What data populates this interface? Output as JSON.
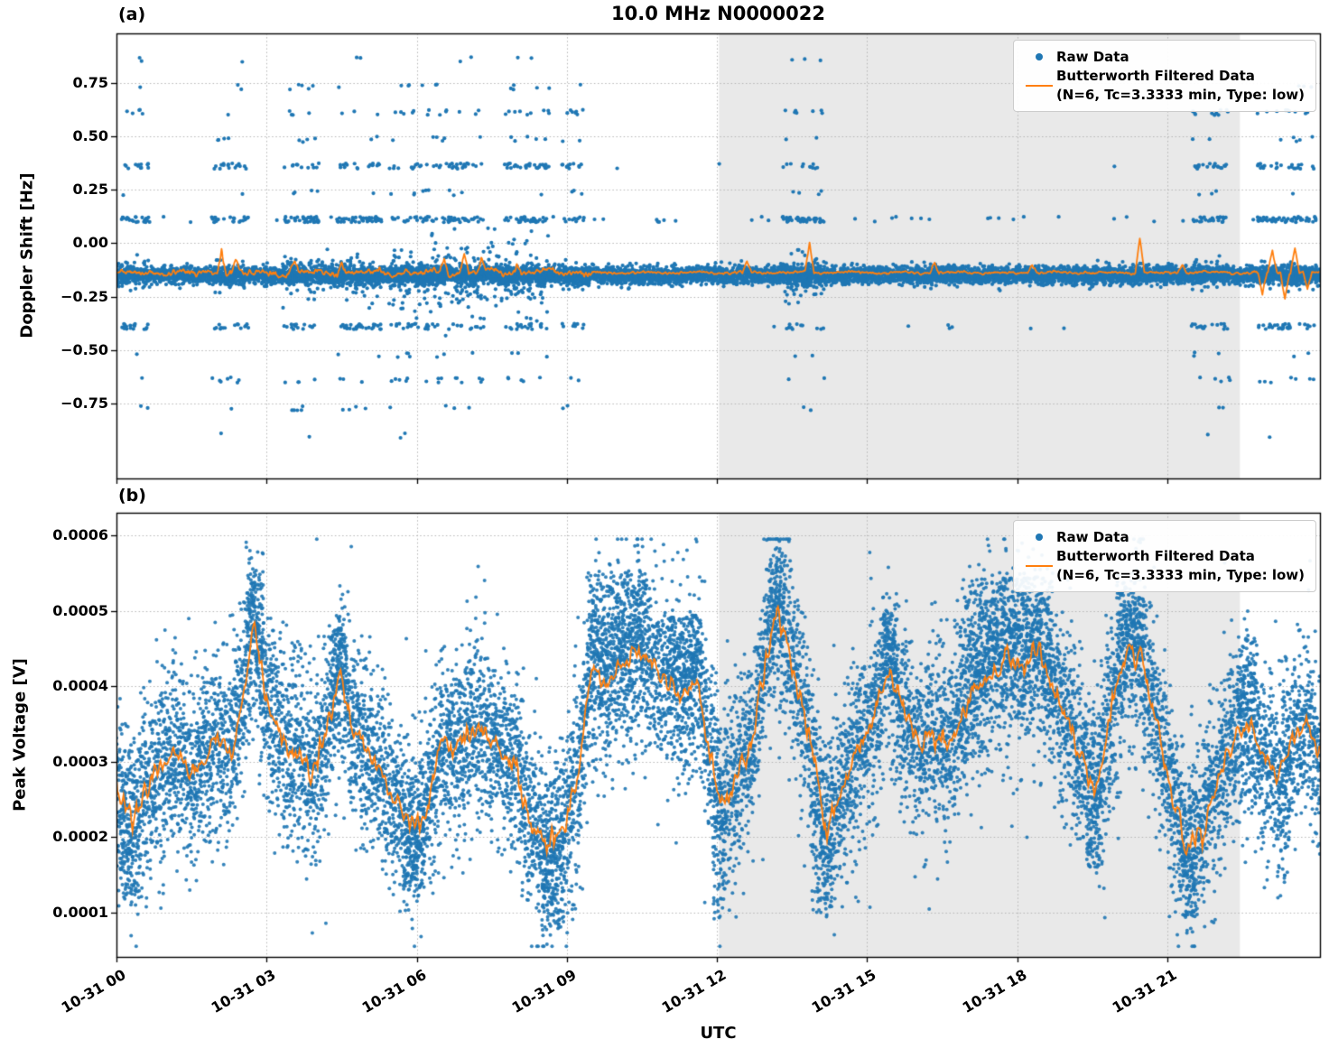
{
  "figure": {
    "colors": {
      "raw": "#1f77b4",
      "filtered": "#ff7f0e",
      "shade": "#e9e9e9",
      "grid": "#b5b5b5",
      "spine": "#000000"
    }
  },
  "legend": {
    "raw_label": "Raw Data",
    "filtered_label": "Butterworth Filtered Data",
    "filtered_sublabel": "(N=6, Tc=3.3333 min, Type: low)"
  },
  "chart_data": [
    {
      "id": "doppler_shift",
      "type": "scatter+line",
      "panel_label": "(a)",
      "title": "10.0 MHz N0000022",
      "ylabel": "Doppler Shift [Hz]",
      "ylim": [
        -1.1,
        0.98
      ],
      "yticks": [
        -0.75,
        -0.5,
        -0.25,
        0.0,
        0.25,
        0.5,
        0.75
      ],
      "ytick_labels": [
        "−0.75",
        "−0.50",
        "−0.25",
        "0.00",
        "0.25",
        "0.50",
        "0.75"
      ],
      "xlim_hours": [
        0,
        24.05
      ],
      "xticks_hours": [
        0,
        3,
        6,
        9,
        12,
        15,
        18,
        21
      ],
      "xtick_labels": [
        "10-31 00",
        "10-31 03",
        "10-31 06",
        "10-31 09",
        "10-31 12",
        "10-31 15",
        "10-31 18",
        "10-31 21"
      ],
      "shaded_region_hours": [
        12.04,
        22.45
      ],
      "grid": "dotted",
      "legend_position": "upper right",
      "series": [
        {
          "name": "Raw Data",
          "style": "scatter",
          "color": "#1f77b4",
          "baseline_hz": -0.15,
          "baseline_spread_hz": 0.02,
          "quantized_levels_hz": [
            0.86,
            0.73,
            0.61,
            0.485,
            0.36,
            0.235,
            0.11,
            -0.39,
            -0.52,
            -0.64,
            -0.77,
            -0.9
          ],
          "active_windows_hours": [
            [
              0.1,
              0.65
            ],
            [
              1.9,
              2.65
            ],
            [
              3.35,
              4.05
            ],
            [
              4.4,
              5.3
            ],
            [
              5.45,
              6.25
            ],
            [
              6.3,
              7.35
            ],
            [
              7.75,
              8.65
            ],
            [
              8.9,
              9.35
            ],
            [
              13.3,
              14.15
            ],
            [
              21.5,
              22.25
            ],
            [
              22.8,
              24.0
            ]
          ],
          "cloud_windows_hours": [
            [
              3.3,
              5.3,
              0.06,
              0.15
            ],
            [
              5.45,
              8.65,
              0.09,
              0.3
            ],
            [
              13.3,
              14.15,
              0.08,
              0.2
            ]
          ]
        },
        {
          "name": "Butterworth Filtered Data",
          "style": "line",
          "color": "#ff7f0e",
          "baseline_hz": -0.138,
          "spikes": [
            {
              "t": 2.1,
              "a": 0.115
            },
            {
              "t": 2.38,
              "a": 0.05
            },
            {
              "t": 3.55,
              "a": 0.06
            },
            {
              "t": 4.5,
              "a": 0.05
            },
            {
              "t": 6.55,
              "a": 0.07
            },
            {
              "t": 6.95,
              "a": 0.1
            },
            {
              "t": 7.3,
              "a": 0.06
            },
            {
              "t": 8.0,
              "a": 0.05
            },
            {
              "t": 12.6,
              "a": 0.05
            },
            {
              "t": 13.85,
              "a": 0.135
            },
            {
              "t": 16.35,
              "a": 0.05
            },
            {
              "t": 18.3,
              "a": 0.04
            },
            {
              "t": 20.45,
              "a": 0.165
            },
            {
              "t": 21.3,
              "a": 0.04
            },
            {
              "t": 22.9,
              "a": -0.1
            },
            {
              "t": 23.1,
              "a": 0.1
            },
            {
              "t": 23.35,
              "a": -0.12
            },
            {
              "t": 23.55,
              "a": 0.12
            },
            {
              "t": 23.8,
              "a": -0.08
            }
          ]
        }
      ]
    },
    {
      "id": "peak_voltage",
      "type": "scatter+line",
      "panel_label": "(b)",
      "ylabel": "Peak Voltage [V]",
      "xlabel": "UTC",
      "ylim": [
        4.1e-05,
        0.00063
      ],
      "yticks": [
        0.0001,
        0.0002,
        0.0003,
        0.0004,
        0.0005,
        0.0006
      ],
      "ytick_labels": [
        "0.0001",
        "0.0002",
        "0.0003",
        "0.0004",
        "0.0005",
        "0.0006"
      ],
      "xlim_hours": [
        0,
        24.05
      ],
      "xticks_hours": [
        0,
        3,
        6,
        9,
        12,
        15,
        18,
        21
      ],
      "xtick_labels": [
        "10-31 00",
        "10-31 03",
        "10-31 06",
        "10-31 09",
        "10-31 12",
        "10-31 15",
        "10-31 18",
        "10-31 21"
      ],
      "shaded_region_hours": [
        12.04,
        22.45
      ],
      "grid": "dotted",
      "legend_position": "upper right",
      "series": [
        {
          "name": "Raw Data",
          "style": "scatter",
          "color": "#1f77b4",
          "band_spread_v": 4.8e-05,
          "envelope_t_hours": [
            0,
            0.3,
            0.8,
            1.2,
            1.5,
            2.0,
            2.3,
            2.75,
            3.0,
            3.3,
            3.6,
            3.9,
            4.2,
            4.45,
            4.7,
            5.0,
            5.3,
            5.6,
            5.9,
            6.2,
            6.5,
            6.8,
            7.1,
            7.4,
            7.7,
            8.0,
            8.3,
            8.6,
            8.9,
            9.2,
            9.5,
            9.8,
            10.1,
            10.4,
            10.7,
            11.0,
            11.3,
            11.6,
            11.9,
            12.1,
            12.4,
            12.7,
            13.0,
            13.2,
            13.5,
            13.8,
            14.0,
            14.2,
            14.5,
            14.8,
            15.1,
            15.4,
            15.7,
            16.0,
            16.3,
            16.6,
            16.9,
            17.2,
            17.5,
            17.8,
            18.1,
            18.4,
            18.7,
            19.0,
            19.3,
            19.6,
            19.9,
            20.2,
            20.5,
            20.8,
            21.1,
            21.4,
            21.7,
            22.0,
            22.3,
            22.6,
            22.9,
            23.2,
            23.5,
            23.8,
            24.05
          ],
          "envelope_v": [
            0.00027,
            0.00022,
            0.00029,
            0.00031,
            0.00028,
            0.00033,
            0.00031,
            0.00048,
            0.00038,
            0.00033,
            0.00031,
            0.00028,
            0.00035,
            0.00042,
            0.00035,
            0.00031,
            0.00028,
            0.00025,
            0.00022,
            0.00023,
            0.00033,
            0.00031,
            0.00035,
            0.00033,
            0.00031,
            0.00029,
            0.00021,
            0.00019,
            0.00021,
            0.00027,
            0.00043,
            0.0004,
            0.00043,
            0.00045,
            0.00043,
            0.0004,
            0.00039,
            0.00041,
            0.0003,
            0.00024,
            0.00028,
            0.00033,
            0.00044,
            0.0005,
            0.00043,
            0.00035,
            0.00028,
            0.0002,
            0.00026,
            0.00031,
            0.00035,
            0.00042,
            0.00038,
            0.00032,
            0.00034,
            0.00032,
            0.00036,
            0.0004,
            0.00042,
            0.00044,
            0.00042,
            0.00045,
            0.0004,
            0.00036,
            0.0003,
            0.00026,
            0.00038,
            0.00045,
            0.00043,
            0.00035,
            0.00025,
            0.00018,
            0.00021,
            0.00028,
            0.00033,
            0.00035,
            0.00031,
            0.00028,
            0.00033,
            0.00035,
            0.0003
          ],
          "low_bursts": [
            [
              0.08,
              0.45,
              0.00012
            ],
            [
              5.75,
              6.15,
              0.00013
            ],
            [
              8.5,
              8.95,
              8e-05
            ],
            [
              11.92,
              12.18,
              9e-05
            ],
            [
              13.9,
              14.3,
              0.0001
            ],
            [
              19.4,
              19.7,
              0.00016
            ],
            [
              21.25,
              21.6,
              9e-05
            ],
            [
              23.2,
              23.45,
              0.00014
            ]
          ],
          "high_bursts": [
            [
              2.6,
              2.95,
              0.00056
            ],
            [
              4.3,
              4.6,
              0.00048
            ],
            [
              9.4,
              10.6,
              0.00056
            ],
            [
              11.0,
              11.7,
              0.0005
            ],
            [
              13.05,
              13.35,
              0.00058
            ],
            [
              15.3,
              15.6,
              0.0005
            ],
            [
              16.85,
              18.7,
              0.00055
            ],
            [
              20.0,
              20.55,
              0.00053
            ],
            [
              22.4,
              22.8,
              0.00047
            ]
          ]
        },
        {
          "name": "Butterworth Filtered Data",
          "style": "line",
          "color": "#ff7f0e",
          "follows": "envelope"
        }
      ]
    }
  ]
}
